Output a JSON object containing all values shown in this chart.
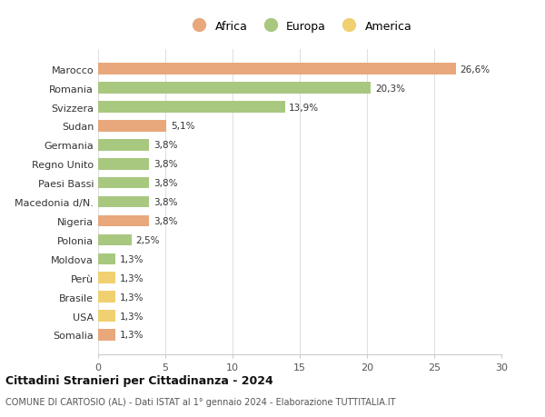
{
  "countries": [
    "Marocco",
    "Romania",
    "Svizzera",
    "Sudan",
    "Germania",
    "Regno Unito",
    "Paesi Bassi",
    "Macedonia d/N.",
    "Nigeria",
    "Polonia",
    "Moldova",
    "Perù",
    "Brasile",
    "USA",
    "Somalia"
  ],
  "values": [
    26.6,
    20.3,
    13.9,
    5.1,
    3.8,
    3.8,
    3.8,
    3.8,
    3.8,
    2.5,
    1.3,
    1.3,
    1.3,
    1.3,
    1.3
  ],
  "labels": [
    "26,6%",
    "20,3%",
    "13,9%",
    "5,1%",
    "3,8%",
    "3,8%",
    "3,8%",
    "3,8%",
    "3,8%",
    "2,5%",
    "1,3%",
    "1,3%",
    "1,3%",
    "1,3%",
    "1,3%"
  ],
  "continents": [
    "Africa",
    "Europa",
    "Europa",
    "Africa",
    "Europa",
    "Europa",
    "Europa",
    "Europa",
    "Africa",
    "Europa",
    "Europa",
    "America",
    "America",
    "America",
    "Africa"
  ],
  "colors": {
    "Africa": "#E8A87C",
    "Europa": "#A8C880",
    "America": "#F0D070"
  },
  "legend_order": [
    "Africa",
    "Europa",
    "America"
  ],
  "title": "Cittadini Stranieri per Cittadinanza - 2024",
  "subtitle": "COMUNE DI CARTOSIO (AL) - Dati ISTAT al 1° gennaio 2024 - Elaborazione TUTTITALIA.IT",
  "xlim": [
    0,
    30
  ],
  "xticks": [
    0,
    5,
    10,
    15,
    20,
    25,
    30
  ],
  "background_color": "#ffffff",
  "grid_color": "#e0e0e0",
  "bar_height": 0.6
}
